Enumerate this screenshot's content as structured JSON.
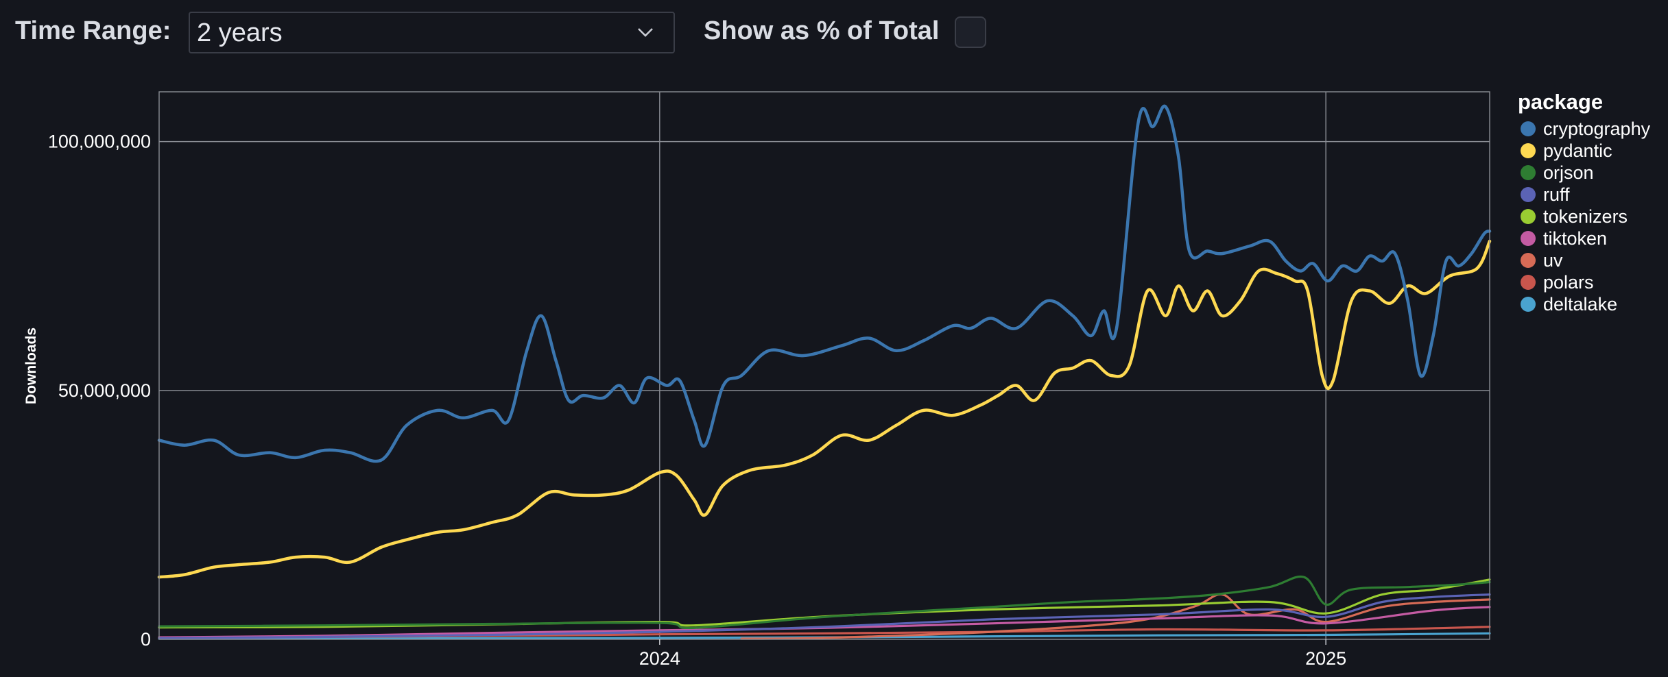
{
  "controls": {
    "time_range_label": "Time Range:",
    "time_range_value": "2 years",
    "show_pct_label": "Show as % of Total",
    "show_pct_checked": false
  },
  "chart_data": {
    "type": "line",
    "ylabel": "Downloads",
    "xlabel": "",
    "ylim": [
      0,
      110000000
    ],
    "xlim": [
      "2023-04-01",
      "2025-04-01"
    ],
    "yticks": [
      0,
      50000000,
      100000000
    ],
    "ytick_labels": [
      "0",
      "50,000,000",
      "100,000,000"
    ],
    "xticks": [
      "2024-01-01",
      "2025-01-01"
    ],
    "xtick_labels": [
      "2024",
      "2025"
    ],
    "grid": true,
    "legend_title": "package",
    "legend_position": "right",
    "series": [
      {
        "name": "cryptography",
        "color": "#3b76af",
        "points": [
          [
            "2023-04-01",
            40000000
          ],
          [
            "2023-04-15",
            39000000
          ],
          [
            "2023-05-01",
            40000000
          ],
          [
            "2023-05-15",
            37000000
          ],
          [
            "2023-06-01",
            37500000
          ],
          [
            "2023-06-15",
            36500000
          ],
          [
            "2023-07-01",
            38000000
          ],
          [
            "2023-07-15",
            37500000
          ],
          [
            "2023-08-01",
            36000000
          ],
          [
            "2023-08-15",
            43000000
          ],
          [
            "2023-09-01",
            46000000
          ],
          [
            "2023-09-15",
            44500000
          ],
          [
            "2023-10-01",
            46000000
          ],
          [
            "2023-10-10",
            44000000
          ],
          [
            "2023-10-20",
            58000000
          ],
          [
            "2023-10-28",
            65000000
          ],
          [
            "2023-11-05",
            56000000
          ],
          [
            "2023-11-12",
            48000000
          ],
          [
            "2023-11-20",
            49000000
          ],
          [
            "2023-12-01",
            48500000
          ],
          [
            "2023-12-10",
            51000000
          ],
          [
            "2023-12-18",
            47500000
          ],
          [
            "2023-12-25",
            52500000
          ],
          [
            "2024-01-05",
            51000000
          ],
          [
            "2024-01-12",
            52000000
          ],
          [
            "2024-01-20",
            44000000
          ],
          [
            "2024-01-26",
            39000000
          ],
          [
            "2024-02-05",
            51000000
          ],
          [
            "2024-02-15",
            53000000
          ],
          [
            "2024-03-01",
            58000000
          ],
          [
            "2024-03-20",
            57000000
          ],
          [
            "2024-04-10",
            59000000
          ],
          [
            "2024-04-25",
            60500000
          ],
          [
            "2024-05-10",
            58000000
          ],
          [
            "2024-05-25",
            60000000
          ],
          [
            "2024-06-10",
            63000000
          ],
          [
            "2024-06-20",
            62500000
          ],
          [
            "2024-07-01",
            64500000
          ],
          [
            "2024-07-15",
            62500000
          ],
          [
            "2024-08-01",
            68000000
          ],
          [
            "2024-08-15",
            65000000
          ],
          [
            "2024-08-25",
            61000000
          ],
          [
            "2024-09-01",
            66000000
          ],
          [
            "2024-09-08",
            62500000
          ],
          [
            "2024-09-20",
            104000000
          ],
          [
            "2024-09-28",
            103000000
          ],
          [
            "2024-10-05",
            107000000
          ],
          [
            "2024-10-12",
            97000000
          ],
          [
            "2024-10-18",
            78000000
          ],
          [
            "2024-10-28",
            78000000
          ],
          [
            "2024-11-05",
            77500000
          ],
          [
            "2024-11-20",
            79000000
          ],
          [
            "2024-12-01",
            80000000
          ],
          [
            "2024-12-10",
            76000000
          ],
          [
            "2024-12-18",
            74000000
          ],
          [
            "2024-12-25",
            75500000
          ],
          [
            "2025-01-02",
            72000000
          ],
          [
            "2025-01-10",
            75000000
          ],
          [
            "2025-01-18",
            74000000
          ],
          [
            "2025-01-25",
            77000000
          ],
          [
            "2025-02-01",
            76000000
          ],
          [
            "2025-02-08",
            77500000
          ],
          [
            "2025-02-15",
            68000000
          ],
          [
            "2025-02-22",
            53000000
          ],
          [
            "2025-03-01",
            61000000
          ],
          [
            "2025-03-08",
            76000000
          ],
          [
            "2025-03-15",
            75000000
          ],
          [
            "2025-03-22",
            77500000
          ],
          [
            "2025-03-29",
            81500000
          ],
          [
            "2025-04-01",
            82000000
          ]
        ]
      },
      {
        "name": "pydantic",
        "color": "#fed952",
        "points": [
          [
            "2023-04-01",
            12500000
          ],
          [
            "2023-04-15",
            13000000
          ],
          [
            "2023-05-01",
            14500000
          ],
          [
            "2023-05-15",
            15000000
          ],
          [
            "2023-06-01",
            15500000
          ],
          [
            "2023-06-15",
            16500000
          ],
          [
            "2023-07-01",
            16500000
          ],
          [
            "2023-07-15",
            15500000
          ],
          [
            "2023-08-01",
            18500000
          ],
          [
            "2023-08-15",
            20000000
          ],
          [
            "2023-09-01",
            21500000
          ],
          [
            "2023-09-15",
            22000000
          ],
          [
            "2023-10-01",
            23500000
          ],
          [
            "2023-10-15",
            25000000
          ],
          [
            "2023-11-01",
            29500000
          ],
          [
            "2023-11-15",
            29000000
          ],
          [
            "2023-12-01",
            29000000
          ],
          [
            "2023-12-15",
            30000000
          ],
          [
            "2024-01-01",
            33500000
          ],
          [
            "2024-01-10",
            33000000
          ],
          [
            "2024-01-20",
            28000000
          ],
          [
            "2024-01-26",
            25000000
          ],
          [
            "2024-02-05",
            31000000
          ],
          [
            "2024-02-20",
            34000000
          ],
          [
            "2024-03-10",
            35000000
          ],
          [
            "2024-03-25",
            37000000
          ],
          [
            "2024-04-10",
            41000000
          ],
          [
            "2024-04-25",
            40000000
          ],
          [
            "2024-05-10",
            43000000
          ],
          [
            "2024-05-25",
            46000000
          ],
          [
            "2024-06-10",
            45000000
          ],
          [
            "2024-06-25",
            47000000
          ],
          [
            "2024-07-05",
            49000000
          ],
          [
            "2024-07-15",
            51000000
          ],
          [
            "2024-07-25",
            48000000
          ],
          [
            "2024-08-05",
            53500000
          ],
          [
            "2024-08-15",
            54500000
          ],
          [
            "2024-08-25",
            56000000
          ],
          [
            "2024-09-05",
            53000000
          ],
          [
            "2024-09-15",
            55000000
          ],
          [
            "2024-09-25",
            70000000
          ],
          [
            "2024-10-05",
            65000000
          ],
          [
            "2024-10-12",
            71000000
          ],
          [
            "2024-10-20",
            66000000
          ],
          [
            "2024-10-28",
            70000000
          ],
          [
            "2024-11-05",
            65000000
          ],
          [
            "2024-11-15",
            68000000
          ],
          [
            "2024-11-25",
            74000000
          ],
          [
            "2024-12-05",
            73500000
          ],
          [
            "2024-12-15",
            72000000
          ],
          [
            "2024-12-22",
            70000000
          ],
          [
            "2024-12-30",
            53000000
          ],
          [
            "2025-01-05",
            52000000
          ],
          [
            "2025-01-15",
            68000000
          ],
          [
            "2025-01-25",
            70000000
          ],
          [
            "2025-02-05",
            67500000
          ],
          [
            "2025-02-15",
            71000000
          ],
          [
            "2025-02-25",
            69500000
          ],
          [
            "2025-03-10",
            73000000
          ],
          [
            "2025-03-25",
            74500000
          ],
          [
            "2025-04-01",
            80000000
          ]
        ]
      },
      {
        "name": "orjson",
        "color": "#2e7d32",
        "points": [
          [
            "2023-04-01",
            2600000
          ],
          [
            "2023-07-01",
            2800000
          ],
          [
            "2023-10-01",
            3100000
          ],
          [
            "2024-01-01",
            3300000
          ],
          [
            "2024-01-20",
            2300000
          ],
          [
            "2024-04-01",
            4500000
          ],
          [
            "2024-07-01",
            6500000
          ],
          [
            "2024-08-15",
            7500000
          ],
          [
            "2024-10-01",
            8200000
          ],
          [
            "2024-11-01",
            9000000
          ],
          [
            "2024-12-01",
            10500000
          ],
          [
            "2024-12-20",
            12500000
          ],
          [
            "2025-01-01",
            7000000
          ],
          [
            "2025-01-15",
            10000000
          ],
          [
            "2025-02-15",
            10500000
          ],
          [
            "2025-03-15",
            11000000
          ],
          [
            "2025-04-01",
            11500000
          ]
        ]
      },
      {
        "name": "ruff",
        "color": "#5b63b5",
        "points": [
          [
            "2023-04-01",
            200000
          ],
          [
            "2023-07-01",
            500000
          ],
          [
            "2023-10-01",
            900000
          ],
          [
            "2024-01-01",
            1500000
          ],
          [
            "2024-04-01",
            2500000
          ],
          [
            "2024-07-01",
            4000000
          ],
          [
            "2024-10-01",
            5000000
          ],
          [
            "2024-12-01",
            6000000
          ],
          [
            "2025-01-01",
            4500000
          ],
          [
            "2025-02-01",
            7500000
          ],
          [
            "2025-03-01",
            8500000
          ],
          [
            "2025-04-01",
            9000000
          ]
        ]
      },
      {
        "name": "tokenizers",
        "color": "#9acd32",
        "points": [
          [
            "2023-04-01",
            2400000
          ],
          [
            "2023-07-01",
            2500000
          ],
          [
            "2023-10-01",
            3000000
          ],
          [
            "2024-01-01",
            3500000
          ],
          [
            "2024-01-20",
            2800000
          ],
          [
            "2024-04-01",
            4600000
          ],
          [
            "2024-07-01",
            6000000
          ],
          [
            "2024-10-01",
            6800000
          ],
          [
            "2024-12-01",
            7500000
          ],
          [
            "2025-01-01",
            5200000
          ],
          [
            "2025-02-01",
            9000000
          ],
          [
            "2025-03-01",
            10000000
          ],
          [
            "2025-04-01",
            12000000
          ]
        ]
      },
      {
        "name": "tiktoken",
        "color": "#c45ba3",
        "points": [
          [
            "2023-04-01",
            400000
          ],
          [
            "2023-07-01",
            700000
          ],
          [
            "2023-10-01",
            1300000
          ],
          [
            "2024-01-01",
            1800000
          ],
          [
            "2024-04-01",
            2300000
          ],
          [
            "2024-07-01",
            3200000
          ],
          [
            "2024-10-01",
            4200000
          ],
          [
            "2024-12-01",
            4800000
          ],
          [
            "2025-01-01",
            3200000
          ],
          [
            "2025-03-01",
            5800000
          ],
          [
            "2025-04-01",
            6500000
          ]
        ]
      },
      {
        "name": "uv",
        "color": "#d76b56",
        "points": [
          [
            "2024-02-15",
            0
          ],
          [
            "2024-04-01",
            300000
          ],
          [
            "2024-07-01",
            1500000
          ],
          [
            "2024-09-15",
            3500000
          ],
          [
            "2024-10-20",
            6500000
          ],
          [
            "2024-11-05",
            9000000
          ],
          [
            "2024-11-20",
            5000000
          ],
          [
            "2024-12-15",
            6000000
          ],
          [
            "2025-01-01",
            3500000
          ],
          [
            "2025-02-01",
            6500000
          ],
          [
            "2025-03-01",
            7500000
          ],
          [
            "2025-04-01",
            8000000
          ]
        ]
      },
      {
        "name": "polars",
        "color": "#c9564d",
        "points": [
          [
            "2023-04-01",
            300000
          ],
          [
            "2023-07-01",
            500000
          ],
          [
            "2023-10-01",
            700000
          ],
          [
            "2024-01-01",
            1000000
          ],
          [
            "2024-04-01",
            1200000
          ],
          [
            "2024-07-01",
            1500000
          ],
          [
            "2024-10-01",
            2000000
          ],
          [
            "2025-01-01",
            1800000
          ],
          [
            "2025-04-01",
            2500000
          ]
        ]
      },
      {
        "name": "deltalake",
        "color": "#4aa3cf",
        "points": [
          [
            "2023-04-01",
            100000
          ],
          [
            "2023-10-01",
            200000
          ],
          [
            "2024-04-01",
            400000
          ],
          [
            "2024-10-01",
            800000
          ],
          [
            "2025-01-01",
            900000
          ],
          [
            "2025-04-01",
            1200000
          ]
        ]
      }
    ]
  }
}
